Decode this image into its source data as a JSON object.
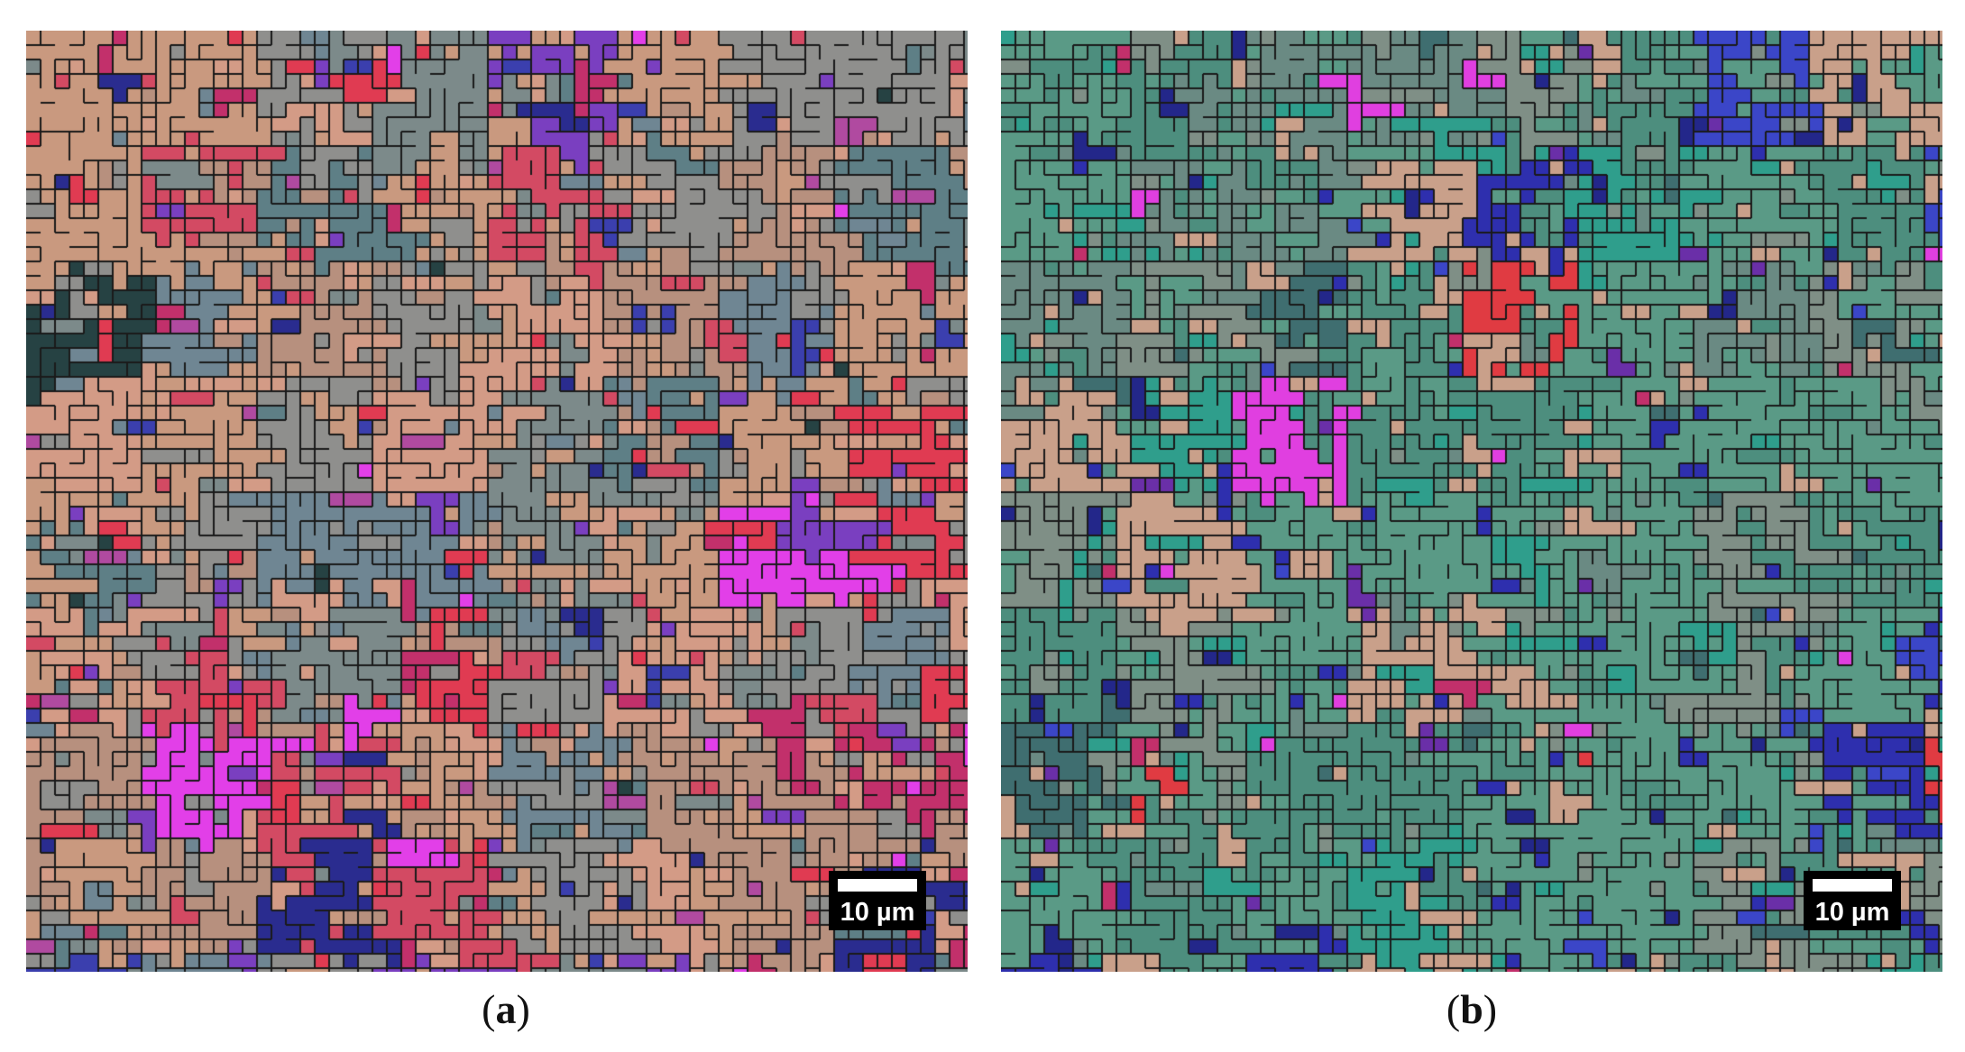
{
  "figure": {
    "panels": [
      {
        "id": "a",
        "caption_open": "(",
        "caption_letter": "a",
        "caption_close": ")",
        "scale_bar_label": "10 µm",
        "palette": [
          "#c9997f",
          "#d39b86",
          "#b7907e",
          "#8f8f8d",
          "#7c8a8a",
          "#6f8693",
          "#d34a63",
          "#e03b52",
          "#c2306b",
          "#3b3fae",
          "#2a2c8f",
          "#7a3fc0",
          "#e23fe8",
          "#b04aa0",
          "#5e7f86",
          "#264243"
        ],
        "palette_weights": [
          20,
          16,
          10,
          14,
          9,
          6,
          6,
          4,
          4,
          4,
          3,
          3,
          1.5,
          2,
          4,
          1
        ]
      },
      {
        "id": "b",
        "caption_open": "(",
        "caption_letter": "b",
        "caption_close": ")",
        "scale_bar_label": "10 µm",
        "palette": [
          "#5a9a86",
          "#4d8e7e",
          "#2f9e8c",
          "#c9a08a",
          "#7f8f86",
          "#6a8a83",
          "#2e2fae",
          "#23278a",
          "#3b46c8",
          "#6a2fa8",
          "#e03fe0",
          "#c2306b",
          "#e03b42",
          "#3f6e70"
        ],
        "palette_weights": [
          24,
          18,
          10,
          12,
          10,
          7,
          6,
          4,
          3,
          3,
          1.2,
          1.5,
          0.8,
          4
        ]
      }
    ]
  }
}
